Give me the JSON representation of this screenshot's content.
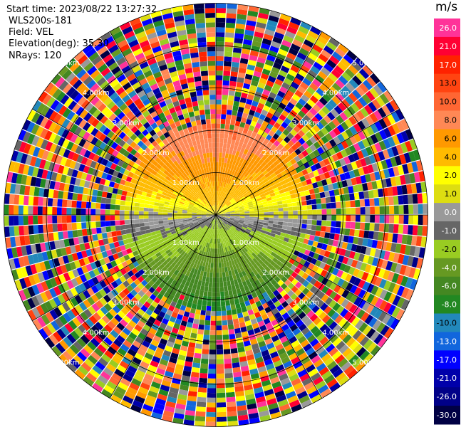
{
  "header": {
    "start_time": "Start time: 2023/08/22 13:27:32",
    "instrument": "WLS200s-181",
    "field": "Field: VEL",
    "elevation": "Elevation(deg): 35.30",
    "nrays": "NRays: 120"
  },
  "chart_data": {
    "type": "heatmap",
    "projection": "polar PPI",
    "field": "VEL",
    "unit": "m/s",
    "range_rings_km": [
      1,
      2,
      3,
      4,
      5
    ],
    "range_ring_labels": [
      "1.00km",
      "2.00km",
      "3.00km",
      "4.00km",
      "5.00km"
    ],
    "colorbar": {
      "unit_label": "m/s",
      "tick_labels": [
        "26.0",
        "21.0",
        "17.0",
        "13.0",
        "10.0",
        "8.0",
        "6.0",
        "4.0",
        "2.0",
        "1.0",
        "0.0",
        "-1.0",
        "-2.0",
        "-4.0",
        "-6.0",
        "-8.0",
        "-10.0",
        "-13.0",
        "-17.0",
        "-21.0",
        "-26.0",
        "-30.0"
      ],
      "colors": [
        "#ff3399",
        "#ff0033",
        "#ff2200",
        "#ff4411",
        "#ff6633",
        "#ff8855",
        "#ff9900",
        "#ffbb00",
        "#ffff00",
        "#dddd11",
        "#999999",
        "#666666",
        "#99cc22",
        "#669922",
        "#448822",
        "#228822",
        "#2288bb",
        "#1166dd",
        "#0000ff",
        "#0000aa",
        "#000088",
        "#000044"
      ]
    },
    "velocity_pattern": {
      "toward_north": "positive (orange/yellow, about 2 to 10 m/s)",
      "toward_south": "negative (green/blue, about -2 to -10 m/s)",
      "valid_range_km": 2.3,
      "beyond_valid_range": "noise (random colors)"
    }
  }
}
